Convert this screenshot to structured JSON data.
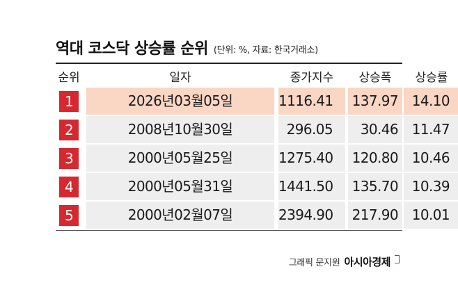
{
  "title": "역대 코스닥 상승률 순위",
  "subtitle": "(단위: %, 자료: 한국거래소)",
  "columns": {
    "rank": "순위",
    "date": "일자",
    "close": "종가지수",
    "change": "상승폭",
    "rate": "상승률"
  },
  "rows": [
    {
      "rank": "1",
      "date": "2026년03월05일",
      "close": "1116.41",
      "change": "137.97",
      "rate": "14.10"
    },
    {
      "rank": "2",
      "date": "2008년10월30일",
      "close": "296.05",
      "change": "30.46",
      "rate": "11.47"
    },
    {
      "rank": "3",
      "date": "2000년05월25일",
      "close": "1275.40",
      "change": "120.80",
      "rate": "10.46"
    },
    {
      "rank": "4",
      "date": "2000년05월31일",
      "close": "1441.50",
      "change": "135.70",
      "rate": "10.39"
    },
    {
      "rank": "5",
      "date": "2000년02월07일",
      "close": "2394.90",
      "change": "217.90",
      "rate": "10.01"
    }
  ],
  "credit": {
    "label": "그래픽 문지원",
    "brand": "아시아경제"
  },
  "colors": {
    "rank_badge": "#d5282f",
    "highlight_row": "#fad6c4",
    "row_bg": "#eeeeee"
  }
}
